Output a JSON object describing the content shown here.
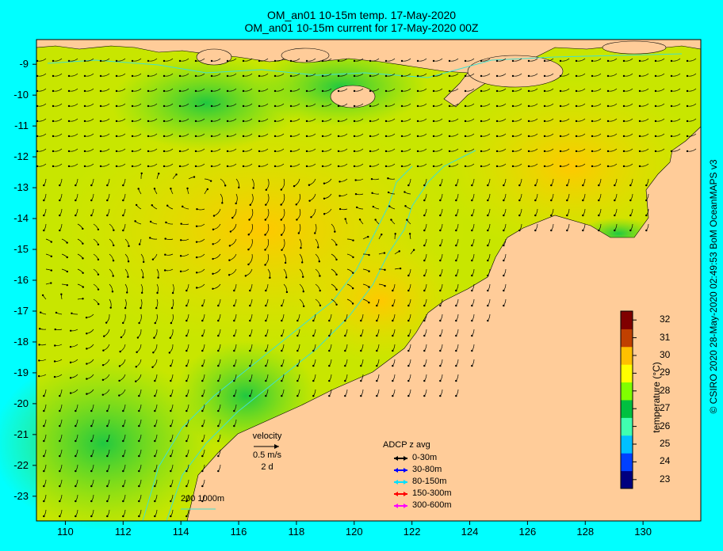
{
  "title": {
    "line1": "OM_an01 10-15m temp. 17-May-2020",
    "line2": "OM_an01 10-15m current for 17-May-2020 00Z"
  },
  "axes": {
    "lat_ticks": [
      "-9",
      "-10",
      "-11",
      "-12",
      "-13",
      "-14",
      "-15",
      "-16",
      "-17",
      "-18",
      "-19",
      "-20",
      "-21",
      "-22",
      "-23"
    ],
    "lon_ticks": [
      "110",
      "112",
      "114",
      "116",
      "118",
      "120",
      "122",
      "124",
      "126",
      "128",
      "130"
    ],
    "lat_range": [
      -23.8,
      -8.2
    ],
    "lon_range": [
      109,
      132
    ]
  },
  "colorbar": {
    "label": "temperature (°C)",
    "ticks": [
      "32",
      "31",
      "30",
      "29",
      "28",
      "27",
      "26",
      "25",
      "24",
      "23"
    ],
    "range": [
      22.5,
      32.5
    ],
    "colors": [
      "#00007f",
      "#0040ff",
      "#00c0ff",
      "#40ffb0",
      "#00c040",
      "#80ff00",
      "#ffff00",
      "#ffc000",
      "#c04000",
      "#800000"
    ]
  },
  "velocity_legend": {
    "title": "velocity",
    "speed": "0.5 m/s",
    "duration": "2 d"
  },
  "adcp_legend": {
    "title": "ADCP z avg",
    "entries": [
      {
        "label": "0-30m",
        "color": "#000000"
      },
      {
        "label": "30-80m",
        "color": "#0000ff"
      },
      {
        "label": "80-150m",
        "color": "#00e0ff"
      },
      {
        "label": "150-300m",
        "color": "#ff0000"
      },
      {
        "label": "300-600m",
        "color": "#ff00ff"
      }
    ]
  },
  "isobath_label": "200  1000m",
  "credit": "© CSIRO 2020   28-May-2020 02:49:53 BoM OceanMAPS v3",
  "colors": {
    "background": "#00ffff",
    "land": "#ffcc99",
    "warm_water": "#ffd400",
    "mid_water": "#bfe000",
    "cool_water": "#33d633",
    "isobath": "#40e0d0"
  }
}
